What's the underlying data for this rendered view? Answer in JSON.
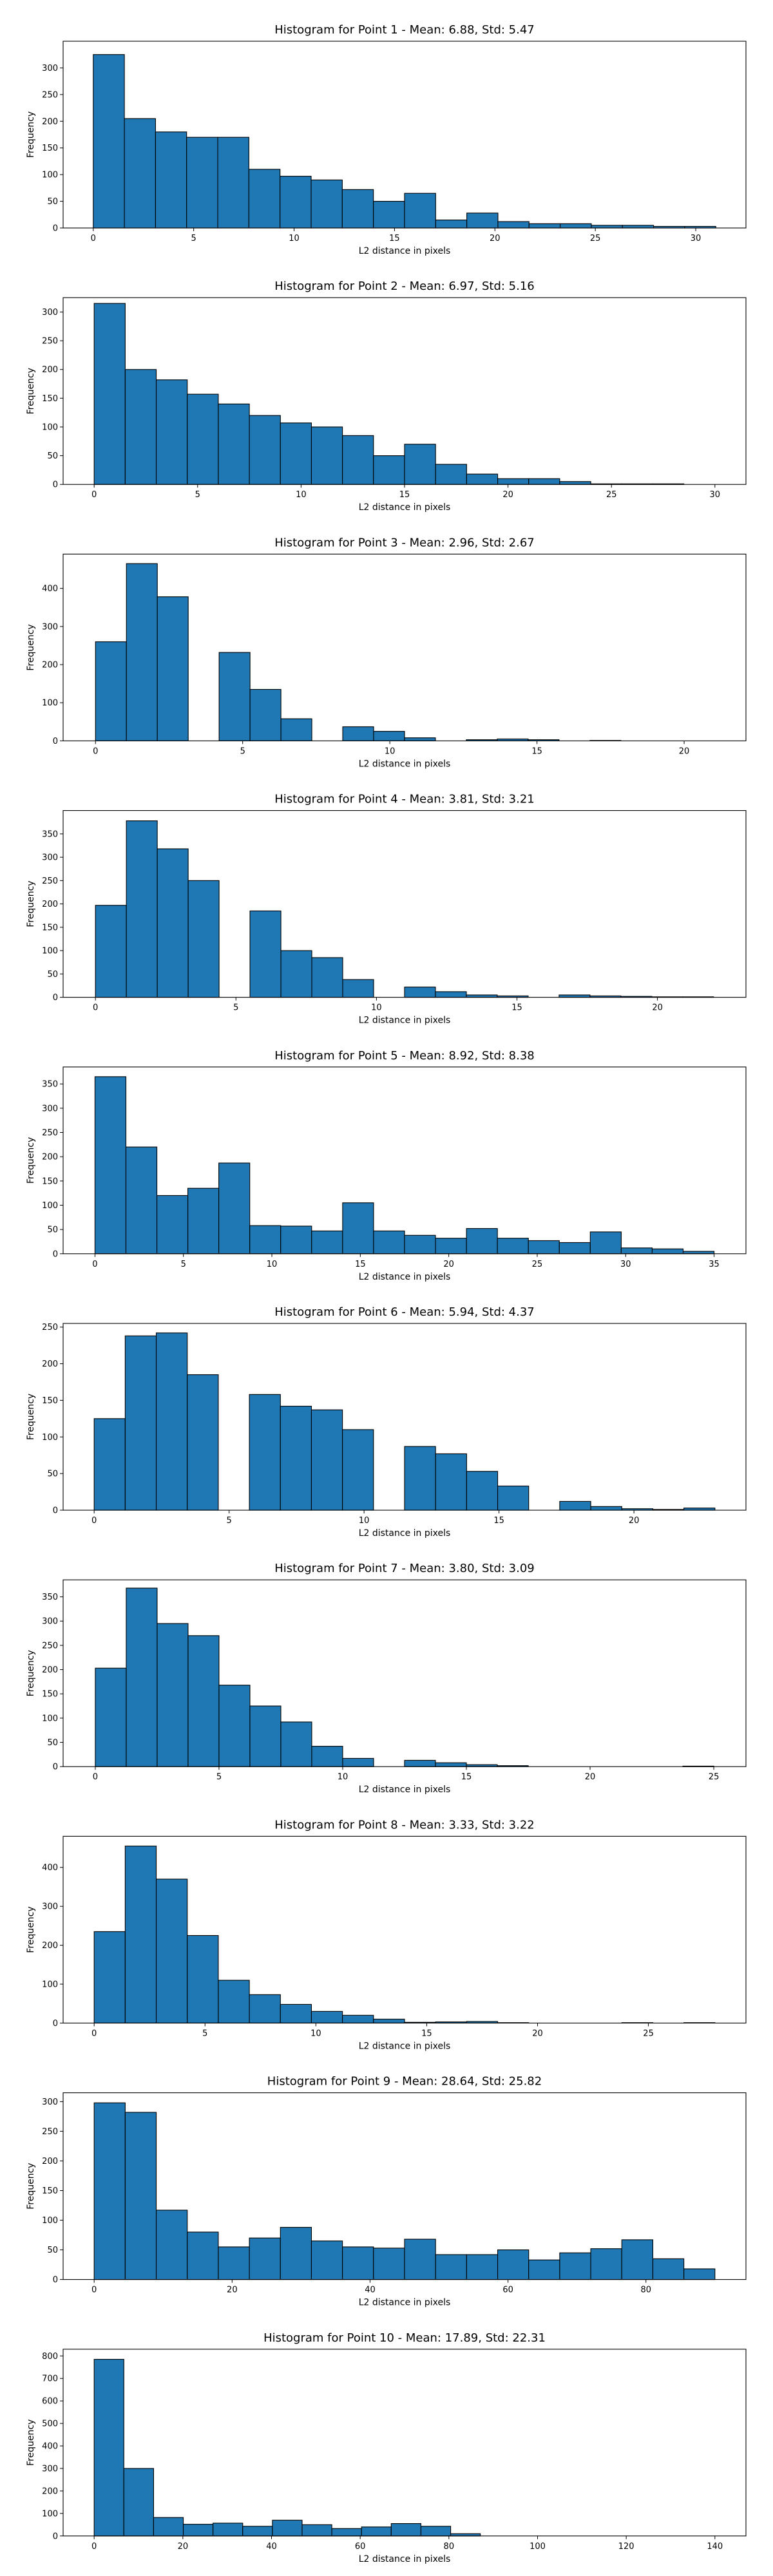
{
  "chart_data": [
    {
      "type": "bar",
      "title": "Histogram for Point 1 - Mean: 6.88, Std: 5.47",
      "xlabel": "L2 distance in pixels",
      "ylabel": "Frequency",
      "x_range": [
        -1.5,
        32.5
      ],
      "y_range": [
        0,
        350
      ],
      "xticks": [
        0,
        5,
        10,
        15,
        20,
        25,
        30
      ],
      "yticks": [
        0,
        50,
        100,
        150,
        200,
        250,
        300
      ],
      "bin_edges": [
        0,
        1.55,
        3.1,
        4.65,
        6.2,
        7.75,
        9.3,
        10.85,
        12.4,
        13.95,
        15.5,
        17.05,
        18.6,
        20.15,
        21.7,
        23.25,
        24.8,
        26.35,
        27.9,
        29.45,
        31
      ],
      "values": [
        325,
        205,
        180,
        170,
        170,
        110,
        97,
        90,
        72,
        50,
        65,
        15,
        28,
        12,
        8,
        8,
        5,
        5,
        3,
        3
      ]
    },
    {
      "type": "bar",
      "title": "Histogram for Point 2 - Mean: 6.97, Std: 5.16",
      "xlabel": "L2 distance in pixels",
      "ylabel": "Frequency",
      "x_range": [
        -1.5,
        31.5
      ],
      "y_range": [
        0,
        325
      ],
      "xticks": [
        0,
        5,
        10,
        15,
        20,
        25,
        30
      ],
      "yticks": [
        0,
        50,
        100,
        150,
        200,
        250,
        300
      ],
      "bin_edges": [
        0,
        1.5,
        3,
        4.5,
        6,
        7.5,
        9,
        10.5,
        12,
        13.5,
        15,
        16.5,
        18,
        19.5,
        21,
        22.5,
        24,
        25.5,
        27,
        28.5,
        30
      ],
      "values": [
        315,
        200,
        182,
        157,
        140,
        120,
        107,
        100,
        85,
        50,
        70,
        35,
        18,
        10,
        10,
        5,
        1,
        1,
        1,
        0
      ]
    },
    {
      "type": "bar",
      "title": "Histogram for Point 3 - Mean: 2.96, Std: 2.67",
      "xlabel": "L2 distance in pixels",
      "ylabel": "Frequency",
      "x_range": [
        -1.1,
        22.1
      ],
      "y_range": [
        0,
        490
      ],
      "xticks": [
        0,
        5,
        10,
        15,
        20
      ],
      "yticks": [
        0,
        100,
        200,
        300,
        400
      ],
      "bin_edges": [
        0,
        1.05,
        2.1,
        3.15,
        4.2,
        5.25,
        6.3,
        7.35,
        8.4,
        9.45,
        10.5,
        11.55,
        12.6,
        13.65,
        14.7,
        15.75,
        16.8,
        17.85,
        18.9,
        19.95,
        21
      ],
      "values": [
        260,
        465,
        378,
        0,
        232,
        135,
        58,
        0,
        37,
        25,
        8,
        0,
        3,
        5,
        3,
        0,
        1,
        0,
        0,
        0
      ]
    },
    {
      "type": "bar",
      "title": "Histogram for Point 4 - Mean: 3.81, Std: 3.21",
      "xlabel": "L2 distance in pixels",
      "ylabel": "Frequency",
      "x_range": [
        -1.15,
        23.15
      ],
      "y_range": [
        0,
        400
      ],
      "xticks": [
        0,
        5,
        10,
        15,
        20
      ],
      "yticks": [
        0,
        50,
        100,
        150,
        200,
        250,
        300,
        350
      ],
      "bin_edges": [
        0,
        1.1,
        2.2,
        3.3,
        4.4,
        5.5,
        6.6,
        7.7,
        8.8,
        9.9,
        11,
        12.1,
        13.2,
        14.3,
        15.4,
        16.5,
        17.6,
        18.7,
        19.8,
        20.9,
        22
      ],
      "values": [
        197,
        378,
        318,
        250,
        0,
        185,
        100,
        85,
        38,
        0,
        22,
        12,
        5,
        3,
        0,
        5,
        3,
        2,
        1,
        1
      ]
    },
    {
      "type": "bar",
      "title": "Histogram for Point 5 - Mean: 8.92, Std: 8.38",
      "xlabel": "L2 distance in pixels",
      "ylabel": "Frequency",
      "x_range": [
        -1.8,
        36.8
      ],
      "y_range": [
        0,
        385
      ],
      "xticks": [
        0,
        5,
        10,
        15,
        20,
        25,
        30,
        35
      ],
      "yticks": [
        0,
        50,
        100,
        150,
        200,
        250,
        300,
        350
      ],
      "bin_edges": [
        0,
        1.75,
        3.5,
        5.25,
        7,
        8.75,
        10.5,
        12.25,
        14,
        15.75,
        17.5,
        19.25,
        21,
        22.75,
        24.5,
        26.25,
        28,
        29.75,
        31.5,
        33.25,
        35
      ],
      "values": [
        365,
        220,
        120,
        135,
        187,
        58,
        57,
        47,
        105,
        47,
        38,
        32,
        52,
        32,
        27,
        23,
        45,
        12,
        10,
        5
      ]
    },
    {
      "type": "bar",
      "title": "Histogram for Point 6 - Mean: 5.94, Std: 4.37",
      "xlabel": "L2 distance in pixels",
      "ylabel": "Frequency",
      "x_range": [
        -1.15,
        24.15
      ],
      "y_range": [
        0,
        255
      ],
      "xticks": [
        0,
        5,
        10,
        15,
        20
      ],
      "yticks": [
        0,
        50,
        100,
        150,
        200,
        250
      ],
      "bin_edges": [
        0,
        1.15,
        2.3,
        3.45,
        4.6,
        5.75,
        6.9,
        8.05,
        9.2,
        10.35,
        11.5,
        12.65,
        13.8,
        14.95,
        16.1,
        17.25,
        18.4,
        19.55,
        20.7,
        21.85,
        23
      ],
      "values": [
        125,
        238,
        242,
        185,
        0,
        158,
        142,
        137,
        110,
        0,
        87,
        77,
        53,
        33,
        0,
        12,
        5,
        2,
        1,
        3
      ]
    },
    {
      "type": "bar",
      "title": "Histogram for Point 7 - Mean: 3.80, Std: 3.09",
      "xlabel": "L2 distance in pixels",
      "ylabel": "Frequency",
      "x_range": [
        -1.3,
        26.3
      ],
      "y_range": [
        0,
        385
      ],
      "xticks": [
        0,
        5,
        10,
        15,
        20,
        25
      ],
      "yticks": [
        0,
        50,
        100,
        150,
        200,
        250,
        300,
        350
      ],
      "bin_edges": [
        0,
        1.25,
        2.5,
        3.75,
        5,
        6.25,
        7.5,
        8.75,
        10,
        11.25,
        12.5,
        13.75,
        15,
        16.25,
        17.5,
        18.75,
        20,
        21.25,
        22.5,
        23.75,
        25
      ],
      "values": [
        203,
        368,
        295,
        270,
        168,
        125,
        92,
        42,
        17,
        0,
        13,
        8,
        4,
        2,
        0,
        0,
        0,
        0,
        0,
        1
      ]
    },
    {
      "type": "bar",
      "title": "Histogram for Point 8 - Mean: 3.33, Std: 3.22",
      "xlabel": "L2 distance in pixels",
      "ylabel": "Frequency",
      "x_range": [
        -1.4,
        29.4
      ],
      "y_range": [
        0,
        480
      ],
      "xticks": [
        0,
        5,
        10,
        15,
        20,
        25
      ],
      "yticks": [
        0,
        100,
        200,
        300,
        400
      ],
      "bin_edges": [
        0,
        1.4,
        2.8,
        4.2,
        5.6,
        7,
        8.4,
        9.8,
        11.2,
        12.6,
        14,
        15.4,
        16.8,
        18.2,
        19.6,
        21,
        22.4,
        23.8,
        25.2,
        26.6,
        28
      ],
      "values": [
        235,
        455,
        370,
        225,
        110,
        73,
        48,
        30,
        20,
        10,
        2,
        3,
        4,
        1,
        0,
        0,
        0,
        1,
        0,
        1
      ]
    },
    {
      "type": "bar",
      "title": "Histogram for Point 9 - Mean: 28.64, Std: 25.82",
      "xlabel": "L2 distance in pixels",
      "ylabel": "Frequency",
      "x_range": [
        -4.5,
        94.5
      ],
      "y_range": [
        0,
        315
      ],
      "xticks": [
        0,
        20,
        40,
        60,
        80
      ],
      "yticks": [
        0,
        50,
        100,
        150,
        200,
        250,
        300
      ],
      "bin_edges": [
        0,
        4.5,
        9,
        13.5,
        18,
        22.5,
        27,
        31.5,
        36,
        40.5,
        45,
        49.5,
        54,
        58.5,
        63,
        67.5,
        72,
        76.5,
        81,
        85.5,
        90
      ],
      "values": [
        298,
        282,
        117,
        80,
        55,
        70,
        88,
        65,
        55,
        53,
        68,
        42,
        42,
        50,
        33,
        45,
        52,
        67,
        35,
        18
      ]
    },
    {
      "type": "bar",
      "title": "Histogram for Point 10 - Mean: 17.89, Std: 22.31",
      "xlabel": "L2 distance in pixels",
      "ylabel": "Frequency",
      "x_range": [
        -7,
        147
      ],
      "y_range": [
        0,
        830
      ],
      "xticks": [
        0,
        20,
        40,
        60,
        80,
        100,
        120,
        140
      ],
      "yticks": [
        0,
        100,
        200,
        300,
        400,
        500,
        600,
        700,
        800
      ],
      "bin_edges": [
        0,
        6.7,
        13.4,
        20.1,
        26.8,
        33.5,
        40.2,
        46.9,
        53.6,
        60.3,
        67,
        73.7,
        80.4,
        87.1,
        93.8,
        100.5,
        107.2,
        113.9,
        120.6,
        127.3,
        134
      ],
      "values": [
        785,
        300,
        82,
        52,
        57,
        43,
        70,
        50,
        33,
        40,
        55,
        43,
        10,
        0,
        0,
        0,
        0,
        0,
        0,
        0
      ]
    }
  ],
  "style": {
    "bar_fill": "#1f77b4",
    "bar_edge": "#000000",
    "axis_color": "#000000"
  }
}
